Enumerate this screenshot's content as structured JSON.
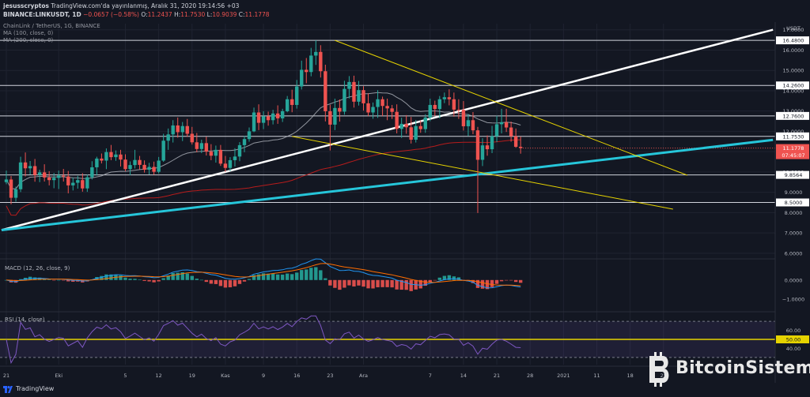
{
  "header": {
    "line1_author": "jesusscryptos",
    "line1_rest": " TradingView.com'da yayınlanmış, Aralık 31, 2020 19:14:56 +03",
    "symbol": "BINANCE:LINKUSDT, 1D",
    "ohlc_o": "11.2437",
    "ohlc_h": "11.7530",
    "ohlc_l": "10.9039",
    "ohlc_c": "11.1778",
    "change": "−0.0657 (−0.58%)",
    "o_label": "O:",
    "h_label": "H:",
    "l_label": "L:",
    "c_label": "C:"
  },
  "legend": {
    "title": "ChainLink / TetherUS, 1G, BINANCE",
    "ma100": "MA (100, close, 0)",
    "ma200": "MA (200, close, 0)"
  },
  "macd_label": "MACD (12, 26, close, 9)",
  "rsi_label": "RSI (14, close)",
  "footer": {
    "brand": "TradingView"
  },
  "watermark": {
    "text": "BitcoinSistemi"
  },
  "colors": {
    "background": "#131722",
    "up": "#26a69a",
    "down": "#ef5350",
    "trend_white": "#ffffff",
    "trend_cyan": "#26c6da",
    "trend_yellow": "#e6d300",
    "rsi": "#7e57c2",
    "hline": "#d1d4dc"
  },
  "chart_data": {
    "type": "candlestick",
    "title": "ChainLink / TetherUS, 1G, BINANCE",
    "price_axis": {
      "unit": "USDT",
      "ticks": [
        6.0,
        7.0,
        8.0,
        9.0,
        10.0,
        11.0,
        12.0,
        13.0,
        14.0,
        15.0,
        16.0,
        17.0
      ],
      "tick_labels": [
        "6.0000",
        "7.0000",
        "8.0000",
        "9.0000",
        "10.0000",
        "11.0000",
        "12.0000",
        "13.0000",
        "14.0000",
        "15.0000",
        "16.0000",
        "17.0000"
      ],
      "range": [
        5.8,
        17.3
      ]
    },
    "x_axis": {
      "labels": [
        "21",
        "Eki",
        "5",
        "12",
        "19",
        "Kas",
        "9",
        "16",
        "23",
        "Ara",
        "7",
        "14",
        "21",
        "28",
        "2021",
        "11",
        "18",
        "25"
      ]
    },
    "horizontal_levels": [
      {
        "value": 16.48,
        "label": "16.4800"
      },
      {
        "value": 14.26,
        "label": "14.2600"
      },
      {
        "value": 12.76,
        "label": "12.7600"
      },
      {
        "value": 11.753,
        "label": "11.7530"
      },
      {
        "value": 9.8564,
        "label": "9.8564"
      },
      {
        "value": 8.5,
        "label": "8.5000"
      }
    ],
    "last_price": {
      "value": 11.1778,
      "label": "11.1778",
      "countdown": "07:45:07"
    },
    "candles": [
      [
        9.5,
        10.07,
        9.4,
        9.63
      ],
      [
        9.63,
        9.8,
        8.41,
        8.73
      ],
      [
        8.73,
        9.28,
        8.54,
        9.15
      ],
      [
        9.15,
        10.75,
        9.01,
        10.47
      ],
      [
        10.47,
        10.96,
        9.78,
        10.18
      ],
      [
        10.18,
        10.54,
        9.88,
        10.29
      ],
      [
        10.29,
        10.64,
        9.52,
        9.85
      ],
      [
        9.85,
        10.11,
        9.5,
        9.98
      ],
      [
        9.98,
        10.38,
        9.53,
        9.73
      ],
      [
        9.73,
        10.04,
        9.34,
        9.6
      ],
      [
        9.6,
        9.95,
        9.2,
        9.71
      ],
      [
        9.71,
        10.07,
        9.16,
        9.82
      ],
      [
        9.82,
        10.15,
        9.53,
        9.78
      ],
      [
        9.78,
        10.05,
        8.95,
        9.34
      ],
      [
        9.34,
        9.73,
        9.09,
        9.47
      ],
      [
        9.47,
        9.81,
        9.18,
        9.6
      ],
      [
        9.6,
        9.94,
        9.03,
        9.19
      ],
      [
        9.19,
        9.87,
        9.02,
        9.74
      ],
      [
        9.74,
        10.53,
        9.63,
        10.23
      ],
      [
        10.23,
        10.75,
        9.83,
        10.66
      ],
      [
        10.66,
        10.91,
        10.42,
        10.56
      ],
      [
        10.56,
        11.16,
        10.14,
        10.98
      ],
      [
        10.98,
        11.33,
        10.58,
        10.73
      ],
      [
        10.73,
        11.06,
        10.55,
        10.86
      ],
      [
        10.86,
        11.09,
        10.27,
        10.61
      ],
      [
        10.61,
        10.87,
        10.04,
        10.14
      ],
      [
        10.14,
        10.52,
        9.84,
        10.34
      ],
      [
        10.34,
        11.09,
        10.17,
        10.59
      ],
      [
        10.59,
        10.79,
        10.13,
        10.35
      ],
      [
        10.35,
        10.57,
        9.97,
        10.11
      ],
      [
        10.11,
        10.45,
        9.88,
        10.25
      ],
      [
        10.25,
        10.51,
        9.86,
        10.01
      ],
      [
        10.01,
        10.74,
        9.93,
        10.56
      ],
      [
        10.56,
        11.88,
        10.5,
        11.54
      ],
      [
        11.54,
        12.14,
        11.09,
        11.85
      ],
      [
        11.85,
        12.55,
        11.45,
        12.29
      ],
      [
        12.29,
        12.68,
        11.69,
        11.96
      ],
      [
        11.96,
        12.46,
        11.52,
        12.26
      ],
      [
        12.26,
        12.61,
        11.73,
        11.88
      ],
      [
        11.88,
        12.22,
        11.35,
        11.46
      ],
      [
        11.46,
        11.92,
        10.97,
        11.13
      ],
      [
        11.13,
        11.59,
        10.93,
        11.42
      ],
      [
        11.42,
        11.74,
        10.81,
        11.0
      ],
      [
        11.0,
        11.37,
        10.58,
        10.8
      ],
      [
        10.8,
        11.3,
        10.46,
        11.09
      ],
      [
        11.09,
        11.33,
        10.3,
        10.41
      ],
      [
        10.41,
        10.79,
        10.01,
        10.2
      ],
      [
        10.2,
        10.73,
        10.04,
        10.58
      ],
      [
        10.58,
        11.17,
        10.27,
        10.76
      ],
      [
        10.76,
        11.47,
        10.53,
        11.32
      ],
      [
        11.32,
        11.78,
        10.97,
        11.62
      ],
      [
        11.62,
        12.19,
        11.49,
        12.0
      ],
      [
        12.0,
        13.17,
        11.96,
        12.93
      ],
      [
        12.93,
        13.33,
        12.06,
        12.42
      ],
      [
        12.42,
        12.99,
        12.11,
        12.74
      ],
      [
        12.74,
        12.97,
        12.28,
        12.55
      ],
      [
        12.55,
        13.06,
        12.34,
        12.88
      ],
      [
        12.88,
        13.28,
        12.37,
        12.64
      ],
      [
        12.64,
        13.11,
        12.46,
        12.99
      ],
      [
        12.99,
        13.74,
        12.94,
        13.58
      ],
      [
        13.58,
        14.05,
        12.94,
        13.3
      ],
      [
        13.3,
        14.53,
        13.12,
        14.21
      ],
      [
        14.21,
        15.48,
        14.06,
        15.03
      ],
      [
        15.03,
        15.61,
        14.37,
        14.92
      ],
      [
        14.92,
        16.11,
        14.71,
        15.73
      ],
      [
        15.73,
        16.48,
        15.27,
        15.91
      ],
      [
        15.91,
        16.24,
        14.65,
        14.96
      ],
      [
        14.96,
        15.28,
        12.49,
        12.99
      ],
      [
        12.99,
        13.31,
        11.06,
        12.33
      ],
      [
        12.33,
        13.61,
        12.06,
        13.15
      ],
      [
        13.15,
        13.57,
        12.48,
        12.97
      ],
      [
        12.97,
        14.49,
        12.82,
        14.09
      ],
      [
        14.09,
        14.72,
        13.62,
        14.43
      ],
      [
        14.43,
        14.74,
        13.17,
        13.46
      ],
      [
        13.46,
        14.48,
        13.27,
        14.03
      ],
      [
        14.03,
        14.22,
        13.02,
        13.38
      ],
      [
        13.38,
        13.87,
        12.75,
        12.93
      ],
      [
        12.93,
        13.42,
        12.62,
        13.2
      ],
      [
        13.2,
        14.03,
        12.66,
        13.58
      ],
      [
        13.58,
        13.71,
        12.75,
        13.25
      ],
      [
        13.25,
        13.61,
        12.55,
        13.13
      ],
      [
        13.13,
        13.3,
        12.61,
        12.96
      ],
      [
        12.96,
        13.33,
        11.9,
        12.12
      ],
      [
        12.12,
        12.67,
        11.68,
        12.37
      ],
      [
        12.37,
        12.8,
        11.88,
        12.2
      ],
      [
        12.2,
        12.71,
        11.4,
        11.59
      ],
      [
        11.59,
        12.56,
        11.45,
        12.26
      ],
      [
        12.26,
        12.53,
        11.93,
        12.11
      ],
      [
        12.11,
        12.84,
        11.93,
        12.68
      ],
      [
        12.68,
        13.61,
        12.5,
        13.3
      ],
      [
        13.3,
        13.51,
        12.76,
        13.1
      ],
      [
        13.1,
        13.74,
        12.64,
        13.58
      ],
      [
        13.58,
        13.91,
        13.39,
        13.68
      ],
      [
        13.68,
        14.07,
        13.28,
        13.58
      ],
      [
        13.58,
        13.91,
        12.72,
        13.07
      ],
      [
        13.07,
        13.58,
        12.61,
        13.06
      ],
      [
        13.06,
        13.49,
        12.04,
        12.25
      ],
      [
        12.25,
        12.85,
        11.77,
        12.55
      ],
      [
        12.55,
        12.95,
        11.86,
        12.05
      ],
      [
        12.05,
        12.22,
        7.98,
        10.6
      ],
      [
        10.6,
        11.66,
        10.29,
        11.31
      ],
      [
        11.31,
        11.8,
        10.8,
        11.12
      ],
      [
        11.12,
        12.27,
        10.93,
        11.76
      ],
      [
        11.76,
        12.77,
        11.47,
        12.35
      ],
      [
        12.35,
        13.11,
        11.9,
        12.45
      ],
      [
        12.45,
        13.11,
        11.97,
        12.19
      ],
      [
        12.19,
        12.48,
        11.49,
        11.76
      ],
      [
        11.76,
        12.14,
        11.19,
        11.24
      ],
      [
        11.24,
        11.75,
        10.9,
        11.18
      ]
    ],
    "ma100": {
      "start_index": 0,
      "values_note": "slow moving average"
    },
    "trendlines": [
      {
        "name": "white ascending",
        "color": "#ffffff"
      },
      {
        "name": "cyan ascending",
        "color": "#26c6da"
      },
      {
        "name": "yellow descending upper",
        "color": "#e6d300"
      },
      {
        "name": "yellow descending lower",
        "color": "#e6d300"
      }
    ],
    "macd": {
      "axis_labels": [
        "0.0000",
        "−1.0000"
      ],
      "axis_ticks": [
        0.0,
        -1.0
      ],
      "range": [
        -1.55,
        0.95
      ]
    },
    "rsi": {
      "axis_labels": [
        "60.00",
        "50.00",
        "40.00"
      ],
      "axis_ticks": [
        60,
        50,
        40
      ],
      "upper_band": 70,
      "lower_band": 30,
      "mid_label": "50.00"
    }
  }
}
